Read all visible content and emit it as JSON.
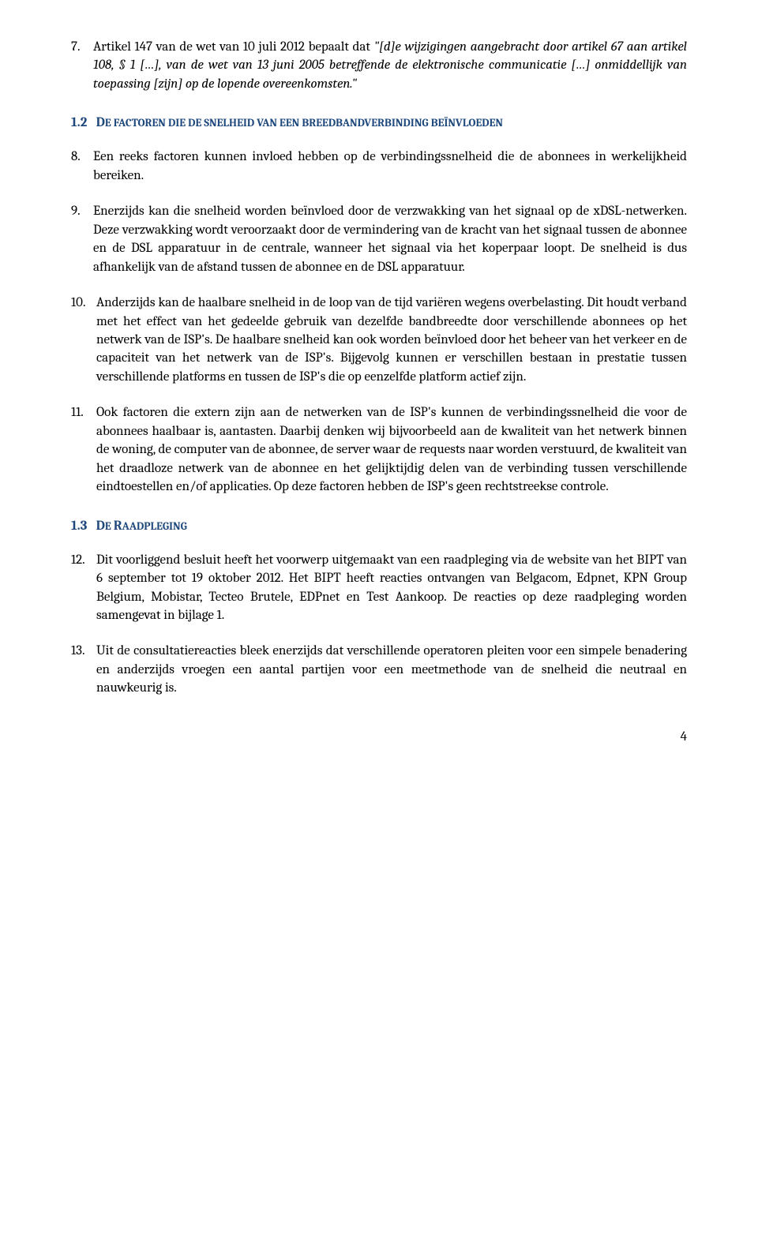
{
  "items": {
    "p7": {
      "num": "7.",
      "text": "Artikel 147 van de wet van 10 juli 2012 bepaalt dat ",
      "italic": "\"[d]e wijzigingen aangebracht door artikel 67 aan artikel 108, § 1 […], van de wet van 13 juni 2005 betreffende de elektronische communicatie […] onmiddellijk van toepassing [zijn] op de lopende overeenkomsten.\""
    },
    "h12": {
      "num": "1.2",
      "prefix": "D",
      "rest": "E FACTOREN DIE DE SNELHEID VAN EEN BREEDBANDVERBINDING BEÏNVLOEDEN"
    },
    "p8": {
      "num": "8.",
      "text": "Een reeks factoren kunnen invloed hebben op de verbindingssnelheid die de abonnees in werkelijkheid bereiken."
    },
    "p9": {
      "num": "9.",
      "text": "Enerzijds kan die snelheid worden beïnvloed door de verzwakking van het signaal op de xDSL-netwerken. Deze verzwakking wordt veroorzaakt door de vermindering van de kracht van het signaal tussen de abonnee en de DSL apparatuur in de centrale, wanneer het signaal via het koperpaar loopt. De snelheid is dus afhankelijk van de afstand tussen de abonnee en de DSL apparatuur."
    },
    "p10": {
      "num": "10.",
      "text": "Anderzijds kan de haalbare snelheid in de loop van de tijd variëren wegens overbelasting. Dit houdt verband met het effect van het gedeelde gebruik van dezelfde bandbreedte door verschillende abonnees op het netwerk van de ISP's. De haalbare snelheid kan ook worden beïnvloed door het beheer van het verkeer en de capaciteit van het netwerk van de ISP's. Bijgevolg kunnen er verschillen bestaan in prestatie tussen verschillende platforms en tussen de ISP's die op eenzelfde platform actief zijn."
    },
    "p11": {
      "num": "11.",
      "text": "Ook factoren die extern zijn aan de netwerken van de ISP's kunnen de verbindingssnelheid die voor de abonnees haalbaar is, aantasten. Daarbij denken wij bijvoorbeeld aan de kwaliteit van het netwerk binnen de woning, de computer van de abonnee, de server waar de requests naar worden verstuurd, de kwaliteit van het draadloze netwerk van de abonnee en het gelijktijdig delen van de verbinding tussen verschillende eindtoestellen en/of applicaties. Op deze factoren hebben de ISP's geen rechtstreekse controle."
    },
    "h13": {
      "num": "1.3",
      "prefix": "D",
      "rest": "E ",
      "prefix2": "R",
      "rest2": "AADPLEGING"
    },
    "p12": {
      "num": "12.",
      "text": "Dit voorliggend besluit heeft het voorwerp uitgemaakt van een raadpleging via de website van het BIPT van 6 september tot 19 oktober 2012. Het BIPT heeft reacties ontvangen van Belgacom, Edpnet, KPN Group Belgium, Mobistar, Tecteo Brutele, EDPnet en Test Aankoop.  De reacties op deze raadpleging worden samengevat in bijlage 1."
    },
    "p13": {
      "num": "13.",
      "text": "Uit de consultatiereacties bleek enerzijds dat verschillende operatoren pleiten voor een simpele benadering en anderzijds vroegen een aantal partijen voor een meetmethode van de snelheid die neutraal en nauwkeurig is."
    }
  },
  "pageNumber": "4"
}
